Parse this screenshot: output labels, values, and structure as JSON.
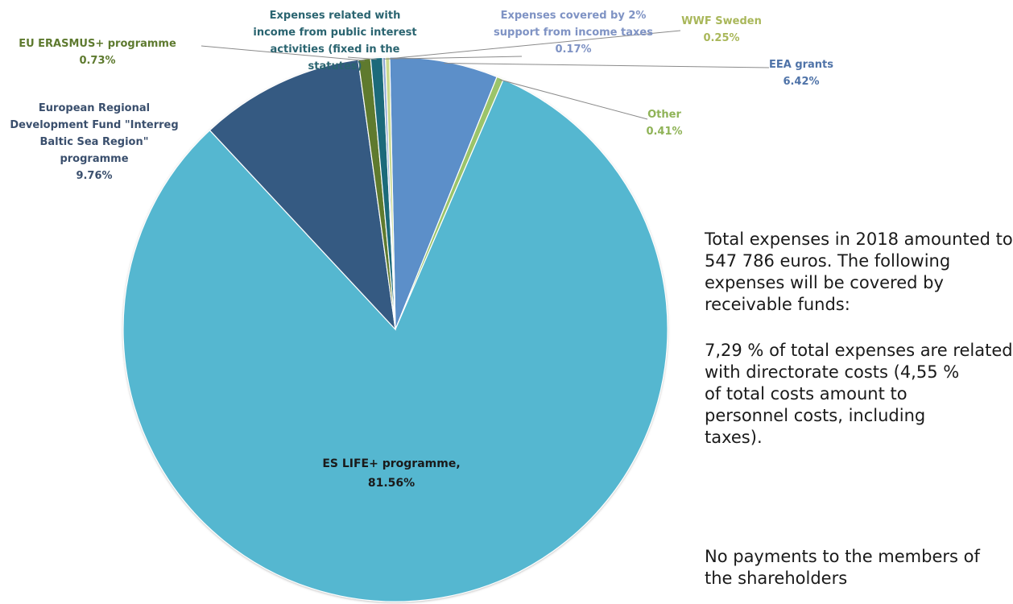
{
  "chart_data": {
    "type": "pie",
    "title": "",
    "unit": "%",
    "slices": [
      {
        "label": "EEA grants",
        "value": 6.42,
        "value_label": "6.42%",
        "color": "#5b8fc9",
        "label_color": "#4f73a8"
      },
      {
        "label": "Other",
        "value": 0.41,
        "value_label": "0.41%",
        "color": "#9bc46a",
        "label_color": "#8fb357"
      },
      {
        "label": "ES LIFE+ programme,",
        "value": 81.56,
        "value_label": "81.56%",
        "color": "#55b7d0",
        "label_color": "#1a1a1a"
      },
      {
        "label": "European Regional Development Fund \"Interreg Baltic Sea Region\" programme",
        "value": 9.76,
        "value_label": "9.76%",
        "color": "#365a82",
        "label_color": "#3a4f6d"
      },
      {
        "label": "EU ERASMUS+ programme",
        "value": 0.73,
        "value_label": "0.73%",
        "color": "#5e7a2f",
        "label_color": "#5e7a2f"
      },
      {
        "label": "Expenses related with income from public interest activities (fixed in the statutes)",
        "value": 0.7,
        "value_label": "",
        "color": "#1c6b7a",
        "label_color": "#2a6470"
      },
      {
        "label": "Expenses covered by 2% support from income taxes",
        "value": 0.17,
        "value_label": "0.17%",
        "color": "#8fa8d4",
        "label_color": "#7f93c4"
      },
      {
        "label": "WWF Sweden",
        "value": 0.25,
        "value_label": "0.25%",
        "color": "#c9d98e",
        "label_color": "#a9b75a"
      }
    ]
  },
  "label_text": {
    "eea": [
      "EEA grants",
      "6.42%"
    ],
    "other": [
      "Other",
      "0.41%"
    ],
    "life": [
      "ES LIFE+ programme,",
      "81.56%"
    ],
    "erdf": [
      "European Regional",
      "Development Fund  \"Interreg",
      "Baltic Sea Region\"",
      "programme",
      "9.76%"
    ],
    "erasmus": [
      "EU ERASMUS+ programme",
      "0.73%"
    ],
    "public": [
      "Expenses related with",
      "income from public interest",
      "activities (fixed in the",
      "statutes)"
    ],
    "tax2": [
      "Expenses covered by 2%",
      "support from income taxes",
      "0.17%"
    ],
    "wwf": [
      "WWF Sweden",
      "0.25%"
    ]
  },
  "side_text": {
    "p1": [
      "Total expenses in 2018 amounted to",
      "547 786 euros. The following",
      "expenses will be covered by",
      "receivable funds:"
    ],
    "p2": [
      "7,29 % of total expenses are related",
      "with directorate costs (4,55 %",
      "of total costs amount to",
      "personnel costs, including",
      "taxes)."
    ],
    "p3": [
      "No payments to the members of",
      "the shareholders"
    ]
  }
}
